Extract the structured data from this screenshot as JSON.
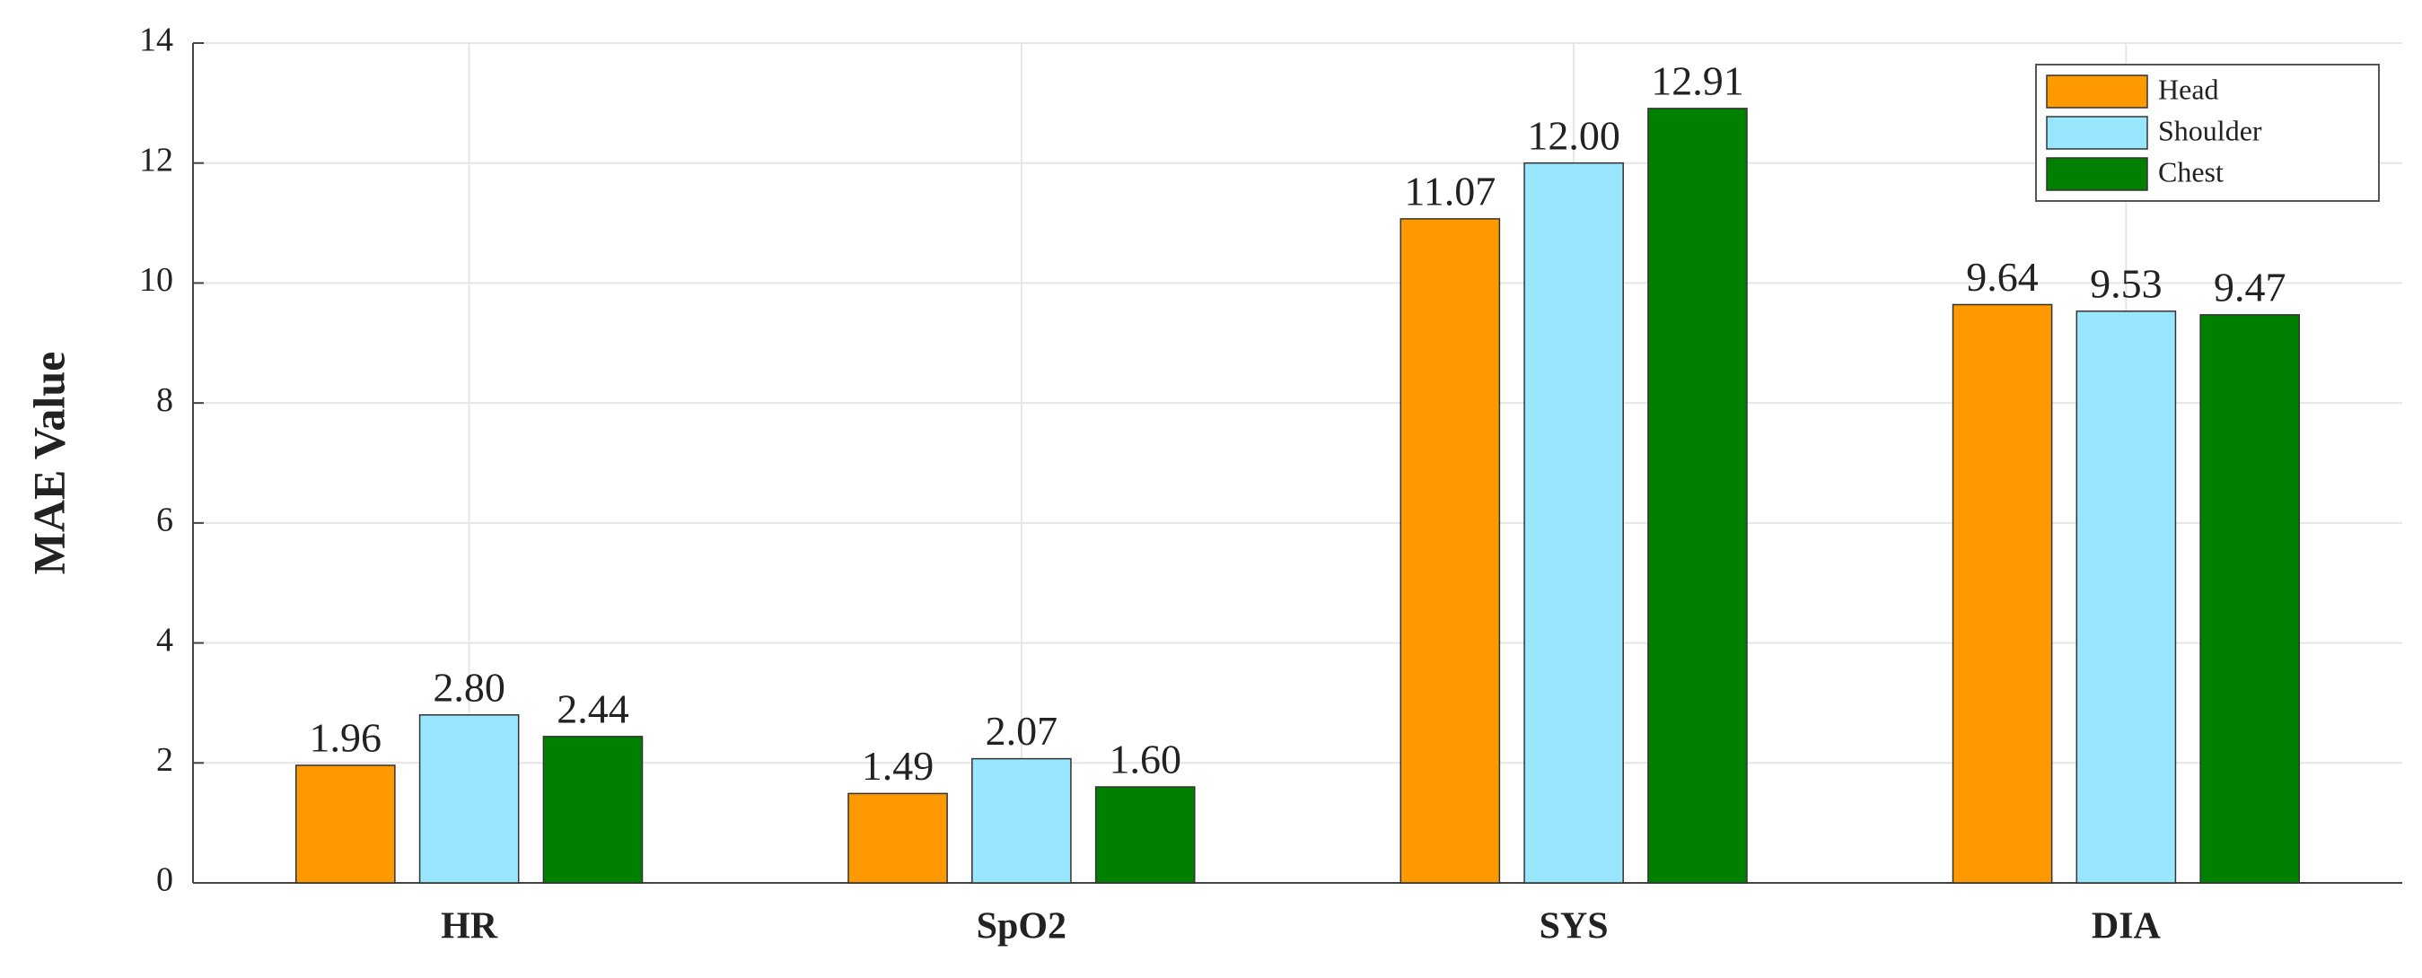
{
  "chart_data": {
    "type": "bar",
    "y_label": "MAE Value",
    "categories": [
      "HR",
      "SpO2",
      "SYS",
      "DIA"
    ],
    "series": [
      {
        "name": "Head",
        "color": "#ff9900",
        "values": [
          1.96,
          1.49,
          11.07,
          9.64
        ],
        "value_labels": [
          "1.96",
          "1.49",
          "11.07",
          "9.64"
        ]
      },
      {
        "name": "Shoulder",
        "color": "#99e6ff",
        "values": [
          2.8,
          2.07,
          12.0,
          9.53
        ],
        "value_labels": [
          "2.80",
          "2.07",
          "12.00",
          "9.53"
        ]
      },
      {
        "name": "Chest",
        "color": "#008000",
        "values": [
          2.44,
          1.6,
          12.91,
          9.47
        ],
        "value_labels": [
          "2.44",
          "1.60",
          "12.91",
          "9.47"
        ]
      }
    ],
    "ylim": [
      0,
      14
    ],
    "yticks": [
      0,
      2,
      4,
      6,
      8,
      10,
      12,
      14
    ],
    "grid": true,
    "legend": "upper-right"
  }
}
